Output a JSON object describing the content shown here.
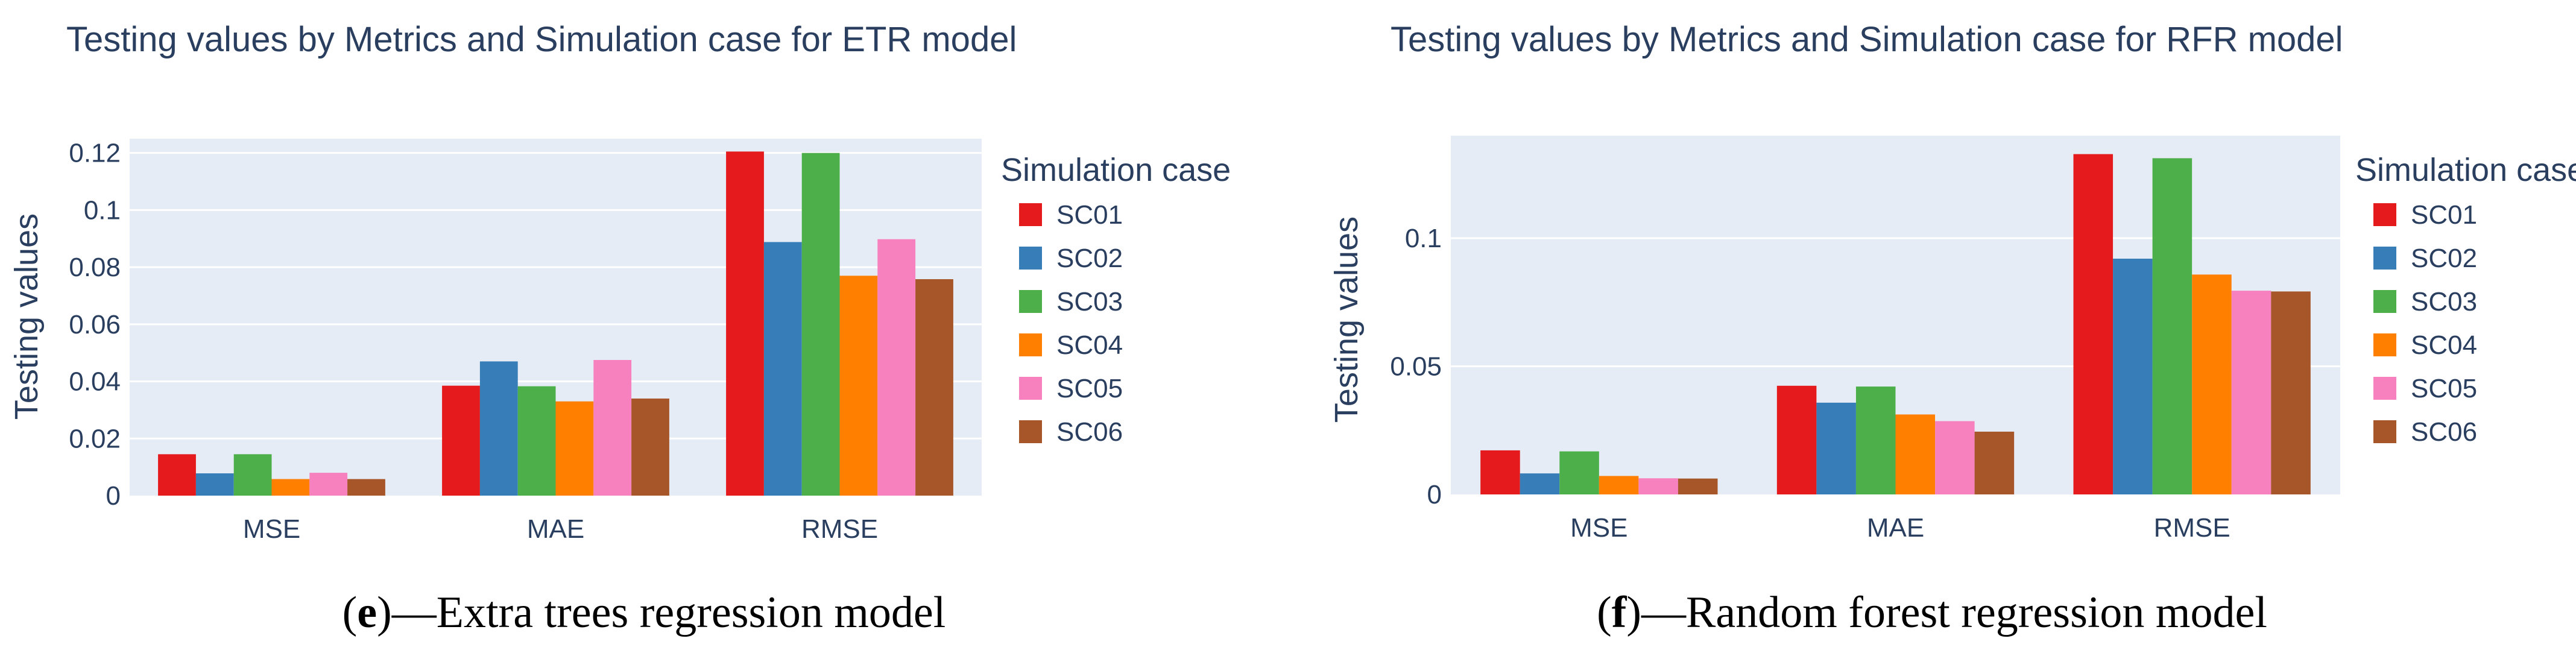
{
  "colors": {
    "plot_background": "#e5ecf6",
    "gridline": "#ffffff",
    "text": "#2a3f5f"
  },
  "chart_data": [
    {
      "type": "bar",
      "title": "Testing values by Metrics and Simulation case for ETR model",
      "xlabel": "",
      "ylabel": "Testing values",
      "categories": [
        "MSE",
        "MAE",
        "RMSE"
      ],
      "ylim": [
        0,
        0.125
      ],
      "yticks": [
        0,
        0.02,
        0.04,
        0.06,
        0.08,
        0.1,
        0.12
      ],
      "ytick_labels": [
        "0",
        "0.02",
        "0.04",
        "0.06",
        "0.08",
        "0.1",
        "0.12"
      ],
      "grid": true,
      "legend_title": "Simulation case",
      "legend_position": "right",
      "series": [
        {
          "name": "SC01",
          "color": "#e41a1c",
          "values": [
            0.0145,
            0.0385,
            0.1205
          ]
        },
        {
          "name": "SC02",
          "color": "#377eb8",
          "values": [
            0.0078,
            0.047,
            0.0888
          ]
        },
        {
          "name": "SC03",
          "color": "#4daf4a",
          "values": [
            0.0145,
            0.0383,
            0.12
          ]
        },
        {
          "name": "SC04",
          "color": "#ff7f00",
          "values": [
            0.0058,
            0.033,
            0.077
          ]
        },
        {
          "name": "SC05",
          "color": "#f781bf",
          "values": [
            0.008,
            0.0475,
            0.0898
          ]
        },
        {
          "name": "SC06",
          "color": "#a65628",
          "values": [
            0.0058,
            0.034,
            0.0758
          ]
        }
      ],
      "caption_letter": "e",
      "caption_open": "(",
      "caption_rest": ")—Extra trees regression model"
    },
    {
      "type": "bar",
      "title": "Testing values by Metrics and Simulation case for RFR model",
      "xlabel": "",
      "ylabel": "Testing values",
      "categories": [
        "MSE",
        "MAE",
        "RMSE"
      ],
      "ylim": [
        0,
        0.14
      ],
      "yticks": [
        0,
        0.05,
        0.1
      ],
      "ytick_labels": [
        "0",
        "0.05",
        "0.1"
      ],
      "grid": true,
      "legend_title": "Simulation case",
      "legend_position": "right",
      "series": [
        {
          "name": "SC01",
          "color": "#e41a1c",
          "values": [
            0.0172,
            0.0424,
            0.1328
          ]
        },
        {
          "name": "SC02",
          "color": "#377eb8",
          "values": [
            0.0082,
            0.0358,
            0.092
          ]
        },
        {
          "name": "SC03",
          "color": "#4daf4a",
          "values": [
            0.0168,
            0.0421,
            0.1312
          ]
        },
        {
          "name": "SC04",
          "color": "#ff7f00",
          "values": [
            0.0072,
            0.0312,
            0.0858
          ]
        },
        {
          "name": "SC05",
          "color": "#f781bf",
          "values": [
            0.0063,
            0.0286,
            0.0795
          ]
        },
        {
          "name": "SC06",
          "color": "#a65628",
          "values": [
            0.0062,
            0.0245,
            0.0792
          ]
        }
      ],
      "caption_letter": "f",
      "caption_open": "(",
      "caption_rest": ")—Random forest regression model"
    }
  ]
}
